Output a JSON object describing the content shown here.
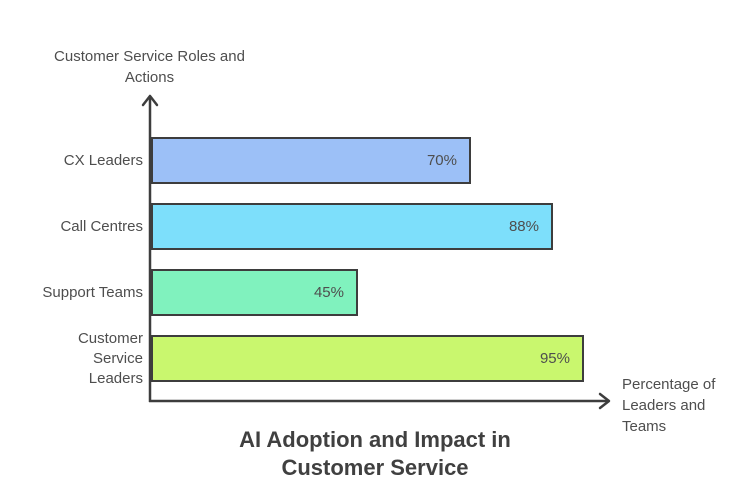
{
  "title": "AI Adoption and Impact in Customer Service",
  "colors": {
    "axis": "#3D3D3D",
    "bar_border": "#3D3D3D",
    "label_text": "#4E4E4E",
    "title_text": "#404040",
    "background": "#FFFFFF"
  },
  "chart_data": {
    "type": "bar",
    "orientation": "horizontal",
    "title": "AI Adoption and Impact in Customer Service",
    "xlabel": "Percentage of Leaders and Teams",
    "ylabel": "Customer Service Roles and Actions",
    "categories": [
      "CX Leaders",
      "Call Centres",
      "Support Teams",
      "Customer Service Leaders"
    ],
    "values": [
      70,
      88,
      45,
      95
    ],
    "value_labels": [
      "70%",
      "88%",
      "45%",
      "95%"
    ],
    "bar_colors": [
      "#9CC0F7",
      "#7DDFFB",
      "#80F2BE",
      "#C9F76E"
    ],
    "xlim": [
      0,
      100
    ],
    "grid": false,
    "legend": false,
    "axis_arrows": true
  }
}
